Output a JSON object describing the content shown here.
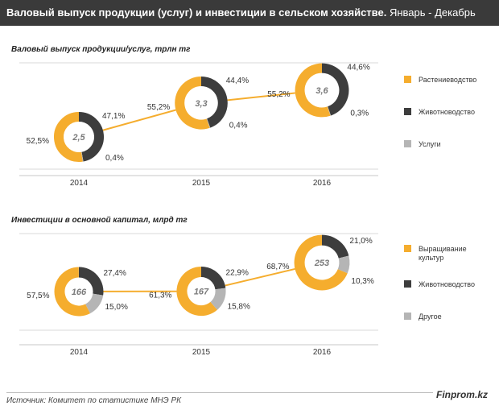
{
  "header": {
    "title_bold": "Валовый выпуск продукции (услуг) и инвестиции в сельском хозяйстве.",
    "title_period": " Январь - Декабрь"
  },
  "footer": {
    "source": "Источник:  Комитет по статистике МНЭ РК",
    "brand": "Finprom.kz"
  },
  "colors": {
    "primary": "#f5ad2e",
    "secondary": "#3d3d3d",
    "tertiary": "#b5b5b5",
    "line": "#f5ad2e"
  },
  "chart_data": [
    {
      "type": "donut-line",
      "title": "Валовый выпуск продукции/услуг,  трлн тг",
      "legend": [
        "Растениеводство",
        "Животноводство",
        "Услуги"
      ],
      "categories": [
        "2014",
        "2015",
        "2016"
      ],
      "totals": [
        "2,5",
        "3,3",
        "3,6"
      ],
      "total_values": [
        2.5,
        3.3,
        3.6
      ],
      "shares": [
        [
          52.5,
          47.1,
          0.4
        ],
        [
          55.2,
          44.4,
          0.4
        ],
        [
          55.2,
          44.6,
          0.3
        ]
      ],
      "share_labels": [
        [
          "52,5%",
          "47,1%",
          "0,4%"
        ],
        [
          "55,2%",
          "44,4%",
          "0,4%"
        ],
        [
          "55,2%",
          "44,6%",
          "0,3%"
        ]
      ]
    },
    {
      "type": "donut-line",
      "title": "Инвестиции в основной  капитал, млрд тг",
      "legend": [
        "Выращивание культур",
        "Животноводство",
        "Другое"
      ],
      "categories": [
        "2014",
        "2015",
        "2016"
      ],
      "totals": [
        "166",
        "167",
        "253"
      ],
      "total_values": [
        166,
        167,
        253
      ],
      "shares": [
        [
          57.5,
          27.4,
          15.0
        ],
        [
          61.3,
          22.9,
          15.8
        ],
        [
          68.7,
          21.0,
          10.3
        ]
      ],
      "share_labels": [
        [
          "57,5%",
          "27,4%",
          "15,0%"
        ],
        [
          "61,3%",
          "22,9%",
          "15,8%"
        ],
        [
          "68,7%",
          "21,0%",
          "10,3%"
        ]
      ]
    }
  ]
}
